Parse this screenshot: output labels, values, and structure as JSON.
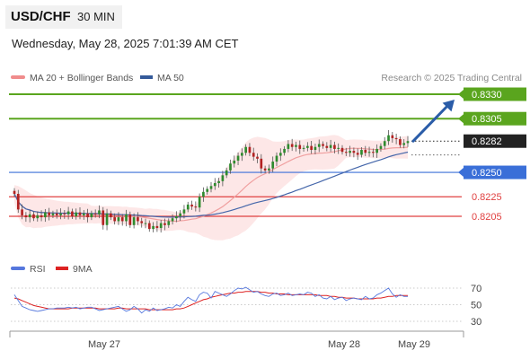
{
  "header": {
    "pair": "USD/CHF",
    "timeframe": "30 MIN",
    "datetime": "Wednesday, May 28, 2025 7:01:39 AM CET"
  },
  "legend": {
    "ma20": "MA 20 + Bollinger Bands",
    "ma50": "MA 50",
    "credit": "Research © 2025 Trading Central",
    "rsi": "RSI",
    "ma9": "9MA"
  },
  "colors": {
    "up_candle": "#2e8b2e",
    "down_candle": "#b22222",
    "bollinger_fill": "#fde3e3",
    "ma20": "#f0a0a0",
    "ma50": "#4466aa",
    "resistance": "#5aa51e",
    "support_blue": "#3a6fd8",
    "support_red": "#e04040",
    "current_price_box": "#222222",
    "arrow": "#2a5ca8",
    "rsi_line": "#5577dd",
    "ma9_line": "#dd2222"
  },
  "chart_data": [
    {
      "type": "candlestick",
      "title": "USD/CHF",
      "x_tick_labels": [
        "May 27",
        "May 28",
        "May 29"
      ],
      "levels": [
        {
          "value": 0.833,
          "label": "0.8330",
          "kind": "resistance"
        },
        {
          "value": 0.8305,
          "label": "0.8305",
          "kind": "resistance"
        },
        {
          "value": 0.8282,
          "label": "0.8282",
          "kind": "current"
        },
        {
          "value": 0.825,
          "label": "0.8250",
          "kind": "pivot"
        },
        {
          "value": 0.8225,
          "label": "0.8225",
          "kind": "support"
        },
        {
          "value": 0.8205,
          "label": "0.8205",
          "kind": "support"
        }
      ],
      "projection": {
        "from": 0.8282,
        "to": 0.833,
        "direction": "up"
      },
      "close": [
        0.8228,
        0.8212,
        0.8206,
        0.8204,
        0.8207,
        0.8203,
        0.8206,
        0.8204,
        0.8209,
        0.8206,
        0.8208,
        0.8206,
        0.8208,
        0.8207,
        0.821,
        0.8205,
        0.8209,
        0.8206,
        0.8208,
        0.8204,
        0.8208,
        0.8207,
        0.8211,
        0.8196,
        0.8208,
        0.8204,
        0.82,
        0.8204,
        0.82,
        0.8207,
        0.8196,
        0.8204,
        0.82,
        0.8198,
        0.8198,
        0.8192,
        0.8195,
        0.8193,
        0.8198,
        0.8196,
        0.82,
        0.8203,
        0.8205,
        0.8208,
        0.8212,
        0.8217,
        0.8215,
        0.8214,
        0.8225,
        0.823,
        0.8233,
        0.8236,
        0.8239,
        0.8241,
        0.8247,
        0.8252,
        0.8259,
        0.8262,
        0.8267,
        0.827,
        0.8276,
        0.827,
        0.8266,
        0.8264,
        0.8254,
        0.8252,
        0.8254,
        0.8261,
        0.8267,
        0.827,
        0.8274,
        0.8279,
        0.8276,
        0.8278,
        0.8274,
        0.8275,
        0.8277,
        0.8273,
        0.8276,
        0.8279,
        0.8277,
        0.8275,
        0.8278,
        0.8274,
        0.8275,
        0.8271,
        0.827,
        0.8272,
        0.827,
        0.8268,
        0.8273,
        0.827,
        0.8271,
        0.827,
        0.8274,
        0.8277,
        0.8282,
        0.8288,
        0.8285,
        0.8284,
        0.8278,
        0.828,
        0.8282
      ],
      "rsi_axis": {
        "ticks": [
          70,
          50,
          30
        ],
        "ylim": [
          20,
          80
        ]
      },
      "rsi": [
        62,
        55,
        48,
        46,
        44,
        43,
        42,
        43,
        44,
        45,
        45,
        46,
        46,
        46,
        47,
        46,
        47,
        45,
        46,
        47,
        47,
        45,
        43,
        44,
        45,
        46,
        47,
        48,
        45,
        42,
        44,
        48,
        45,
        40,
        44,
        42,
        46,
        43,
        44,
        45,
        47,
        46,
        50,
        48,
        54,
        59,
        56,
        54,
        62,
        65,
        64,
        58,
        66,
        64,
        62,
        60,
        63,
        67,
        70,
        69,
        71,
        68,
        65,
        66,
        63,
        61,
        60,
        63,
        64,
        61,
        62,
        64,
        61,
        62,
        63,
        62,
        65,
        64,
        60,
        62,
        58,
        57,
        60,
        56,
        58,
        59,
        55,
        57,
        58,
        57,
        56,
        60,
        57,
        58,
        62,
        64,
        67,
        70,
        63,
        59,
        62,
        60,
        60
      ],
      "ma9": [
        58,
        57,
        55,
        53,
        51,
        49,
        48,
        47,
        46,
        45,
        45,
        45,
        45,
        45,
        45,
        46,
        46,
        46,
        46,
        46,
        46,
        46,
        45,
        45,
        45,
        45,
        45,
        46,
        46,
        45,
        45,
        45,
        45,
        45,
        45,
        44,
        44,
        44,
        44,
        44,
        44,
        44,
        45,
        45,
        46,
        48,
        50,
        52,
        54,
        56,
        57,
        59,
        60,
        61,
        62,
        63,
        64,
        64,
        65,
        65,
        66,
        66,
        66,
        66,
        65,
        65,
        64,
        64,
        63,
        63,
        63,
        62,
        62,
        62,
        62,
        62,
        62,
        62,
        62,
        61,
        61,
        61,
        60,
        60,
        59,
        59,
        58,
        58,
        58,
        57,
        57,
        57,
        57,
        57,
        58,
        58,
        59,
        60,
        60,
        61,
        61,
        61,
        61
      ]
    }
  ]
}
